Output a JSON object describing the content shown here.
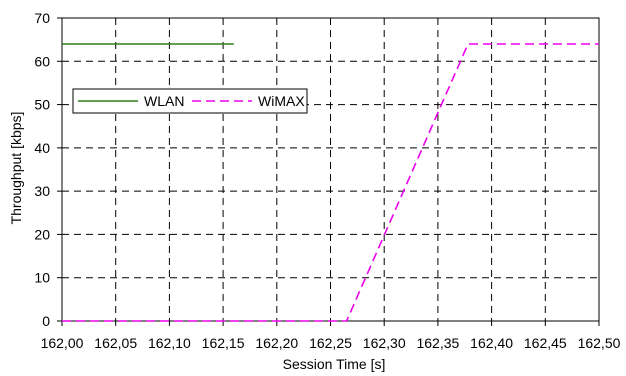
{
  "chart_data": {
    "type": "line",
    "title": "",
    "xlabel": "Session Time [s]",
    "ylabel": "Throughput [kbps]",
    "xlim": [
      162.0,
      162.5
    ],
    "ylim": [
      0,
      70
    ],
    "x_ticks": [
      162.0,
      162.05,
      162.1,
      162.15,
      162.2,
      162.25,
      162.3,
      162.35,
      162.4,
      162.45,
      162.5
    ],
    "x_tick_labels": [
      "162,00",
      "162,05",
      "162,10",
      "162,15",
      "162,20",
      "162,25",
      "162,30",
      "162,35",
      "162,40",
      "162,45",
      "162,50"
    ],
    "y_ticks": [
      0,
      10,
      20,
      30,
      40,
      50,
      60,
      70
    ],
    "y_tick_labels": [
      "0",
      "10",
      "20",
      "30",
      "40",
      "50",
      "60",
      "70"
    ],
    "grid": true,
    "legend_placement": "upper-left",
    "series": [
      {
        "name": "WLAN",
        "color": "#2e7d1f",
        "style": "solid",
        "points": [
          [
            162.0,
            64
          ],
          [
            162.16,
            64
          ]
        ]
      },
      {
        "name": "WiMAX",
        "color": "#ee00ee",
        "style": "dashed",
        "points": [
          [
            162.0,
            0
          ],
          [
            162.265,
            0
          ],
          [
            162.378,
            64
          ],
          [
            162.5,
            64
          ]
        ]
      }
    ]
  }
}
